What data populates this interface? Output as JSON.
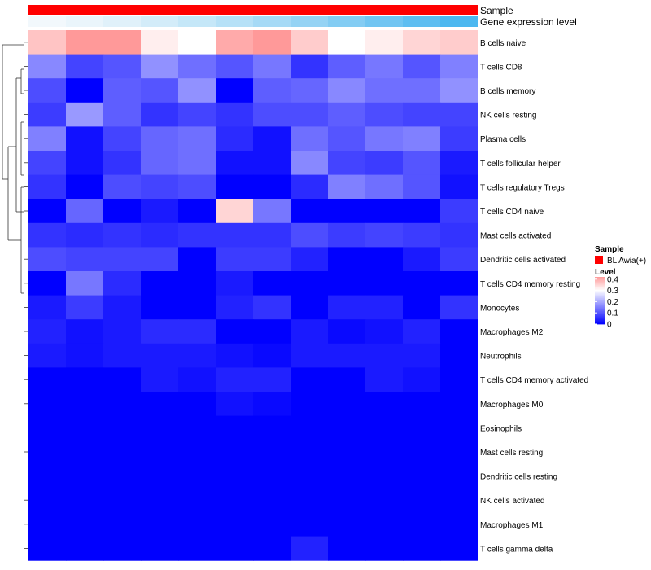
{
  "chart_data": {
    "type": "heatmap",
    "annotation_tracks": [
      {
        "name": "Sample",
        "colors": [
          "#ff0000",
          "#ff0000",
          "#ff0000",
          "#ff0000",
          "#ff0000",
          "#ff0000",
          "#ff0000",
          "#ff0000",
          "#ff0000",
          "#ff0000",
          "#ff0000",
          "#ff0000"
        ]
      },
      {
        "name": "Gene expression level",
        "colors": [
          "#f2f8fc",
          "#eaf5fb",
          "#e0f1fa",
          "#d3ecf9",
          "#c5e7f8",
          "#b6e1f7",
          "#a6daf6",
          "#95d3f4",
          "#83ccf3",
          "#70c5f2",
          "#5ebef1",
          "#4cb8f0"
        ]
      }
    ],
    "rows": [
      "B cells naive",
      "T cells CD8",
      "B cells memory",
      "NK cells resting",
      "Plasma cells",
      "T cells follicular helper",
      "T cells regulatory  Tregs",
      "T cells CD4 naive",
      "Mast cells activated",
      "Dendritic cells activated",
      "T cells CD4 memory resting",
      "Monocytes",
      "Macrophages M2",
      "Neutrophils",
      "T cells CD4 memory activated",
      "Macrophages M0",
      "Eosinophils",
      "Mast cells resting",
      "Dendritic cells resting",
      "NK cells activated",
      "Macrophages M1",
      "T cells gamma delta"
    ],
    "values": [
      [
        0.37,
        0.42,
        0.42,
        0.32,
        0.3,
        0.4,
        0.42,
        0.36,
        0.3,
        0.32,
        0.35,
        0.36
      ],
      [
        0.16,
        0.08,
        0.1,
        0.17,
        0.13,
        0.1,
        0.14,
        0.06,
        0.11,
        0.14,
        0.1,
        0.15
      ],
      [
        0.09,
        0.0,
        0.11,
        0.1,
        0.17,
        0.0,
        0.11,
        0.12,
        0.16,
        0.13,
        0.13,
        0.17
      ],
      [
        0.07,
        0.18,
        0.11,
        0.06,
        0.08,
        0.06,
        0.09,
        0.09,
        0.11,
        0.09,
        0.08,
        0.08
      ],
      [
        0.15,
        0.02,
        0.08,
        0.12,
        0.13,
        0.05,
        0.02,
        0.13,
        0.1,
        0.14,
        0.15,
        0.07
      ],
      [
        0.08,
        0.02,
        0.06,
        0.12,
        0.13,
        0.02,
        0.02,
        0.16,
        0.08,
        0.07,
        0.1,
        0.03
      ],
      [
        0.06,
        0.0,
        0.09,
        0.08,
        0.09,
        0.0,
        0.0,
        0.05,
        0.15,
        0.13,
        0.1,
        0.02
      ],
      [
        0.0,
        0.12,
        0.0,
        0.03,
        0.0,
        0.35,
        0.14,
        0.0,
        0.0,
        0.0,
        0.0,
        0.07
      ],
      [
        0.06,
        0.05,
        0.06,
        0.05,
        0.06,
        0.06,
        0.06,
        0.09,
        0.07,
        0.08,
        0.07,
        0.06
      ],
      [
        0.09,
        0.08,
        0.08,
        0.08,
        0.0,
        0.07,
        0.07,
        0.04,
        0.0,
        0.0,
        0.03,
        0.07
      ],
      [
        0.0,
        0.14,
        0.05,
        0.0,
        0.0,
        0.03,
        0.0,
        0.0,
        0.0,
        0.0,
        0.0,
        0.0
      ],
      [
        0.03,
        0.07,
        0.03,
        0.0,
        0.0,
        0.04,
        0.06,
        0.0,
        0.04,
        0.04,
        0.0,
        0.06
      ],
      [
        0.04,
        0.02,
        0.03,
        0.05,
        0.05,
        0.0,
        0.0,
        0.03,
        0.01,
        0.02,
        0.04,
        0.0
      ],
      [
        0.03,
        0.02,
        0.03,
        0.03,
        0.03,
        0.02,
        0.01,
        0.03,
        0.03,
        0.03,
        0.03,
        0.0
      ],
      [
        0.0,
        0.0,
        0.0,
        0.03,
        0.02,
        0.04,
        0.04,
        0.0,
        0.0,
        0.03,
        0.02,
        0.0
      ],
      [
        0.0,
        0.0,
        0.0,
        0.0,
        0.0,
        0.02,
        0.01,
        0.0,
        0.0,
        0.0,
        0.0,
        0.0
      ],
      [
        0.0,
        0.0,
        0.0,
        0.0,
        0.0,
        0.0,
        0.0,
        0.0,
        0.0,
        0.0,
        0.0,
        0.0
      ],
      [
        0.0,
        0.0,
        0.0,
        0.0,
        0.0,
        0.0,
        0.0,
        0.0,
        0.0,
        0.0,
        0.0,
        0.0
      ],
      [
        0.0,
        0.0,
        0.0,
        0.0,
        0.0,
        0.0,
        0.0,
        0.0,
        0.0,
        0.0,
        0.0,
        0.0
      ],
      [
        0.0,
        0.0,
        0.0,
        0.0,
        0.0,
        0.0,
        0.0,
        0.0,
        0.0,
        0.0,
        0.0,
        0.0
      ],
      [
        0.0,
        0.0,
        0.0,
        0.0,
        0.0,
        0.0,
        0.0,
        0.0,
        0.0,
        0.0,
        0.0,
        0.0
      ],
      [
        0.0,
        0.0,
        0.0,
        0.0,
        0.0,
        0.0,
        0.0,
        0.04,
        0.0,
        0.0,
        0.0,
        0.0
      ]
    ],
    "row_dendrogram": true,
    "color_scale": {
      "low": "#0000ff",
      "mid": "#ffffff",
      "high": "#ff0000",
      "domain": [
        0,
        0.3,
        0.6
      ]
    },
    "legend": {
      "placement": "right",
      "sample_title": "Sample",
      "sample_entries": [
        {
          "label": "BL Awia(+)",
          "color": "#ff0000"
        }
      ],
      "level_title": "Level",
      "level_ticks": [
        0.4,
        0.3,
        0.2,
        0.1,
        0
      ],
      "level_range": [
        0,
        0.42
      ]
    }
  }
}
